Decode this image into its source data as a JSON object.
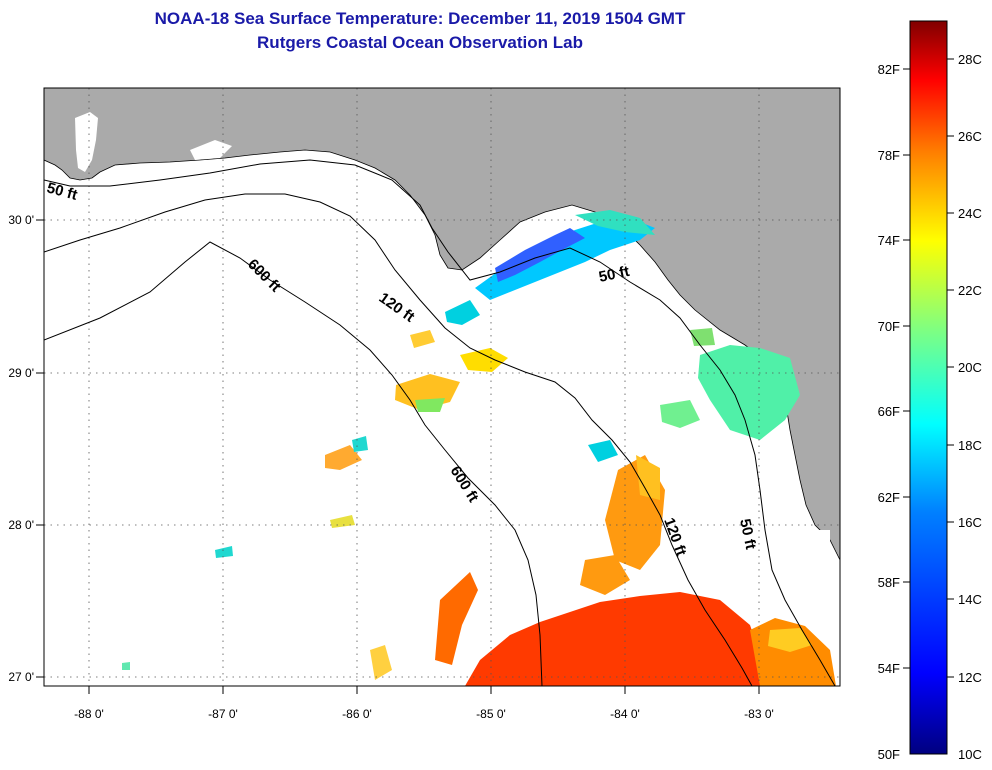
{
  "header": {
    "title_line1": "NOAA-18 Sea Surface Temperature:  December 11, 2019 1504 GMT",
    "title_line2": "Rutgers Coastal Ocean Observation Lab"
  },
  "map": {
    "lon_ticks": [
      {
        "value": -88,
        "label": "-88 0'"
      },
      {
        "value": -87,
        "label": "-87 0'"
      },
      {
        "value": -86,
        "label": "-86 0'"
      },
      {
        "value": -85,
        "label": "-85 0'"
      },
      {
        "value": -84,
        "label": "-84 0'"
      },
      {
        "value": -83,
        "label": "-83 0'"
      }
    ],
    "lat_ticks": [
      {
        "value": 30,
        "label": "30 0'"
      },
      {
        "value": 29,
        "label": "29 0'"
      },
      {
        "value": 28,
        "label": "28 0'"
      },
      {
        "value": 27,
        "label": "27 0'"
      }
    ],
    "contour_labels": {
      "c50_west": "50 ft",
      "c50_bigbend": "50 ft",
      "c50_south": "50 ft",
      "c120_north": "120 ft",
      "c120_south": "120 ft",
      "c600_north": "600 ft",
      "c600_south": "600 ft"
    },
    "colors": {
      "land": "#aaaaaa",
      "ocean": "#ffffff",
      "contour": "#000000",
      "grid": "#444444"
    }
  },
  "colorbar": {
    "f_labels": [
      {
        "value": 82,
        "label": "82F"
      },
      {
        "value": 78,
        "label": "78F"
      },
      {
        "value": 74,
        "label": "74F"
      },
      {
        "value": 70,
        "label": "70F"
      },
      {
        "value": 66,
        "label": "66F"
      },
      {
        "value": 62,
        "label": "62F"
      },
      {
        "value": 58,
        "label": "58F"
      },
      {
        "value": 54,
        "label": "54F"
      },
      {
        "value": 50,
        "label": "50F"
      }
    ],
    "c_labels": [
      {
        "value": 28,
        "label": "28C"
      },
      {
        "value": 26,
        "label": "26C"
      },
      {
        "value": 24,
        "label": "24C"
      },
      {
        "value": 22,
        "label": "22C"
      },
      {
        "value": 20,
        "label": "20C"
      },
      {
        "value": 18,
        "label": "18C"
      },
      {
        "value": 16,
        "label": "16C"
      },
      {
        "value": 14,
        "label": "14C"
      },
      {
        "value": 12,
        "label": "12C"
      },
      {
        "value": 10,
        "label": "10C"
      }
    ],
    "scale_colors": [
      "#800000",
      "#ff0000",
      "#ff8000",
      "#ffff00",
      "#80ff80",
      "#00ffff",
      "#0080ff",
      "#0000ff",
      "#000080"
    ]
  }
}
